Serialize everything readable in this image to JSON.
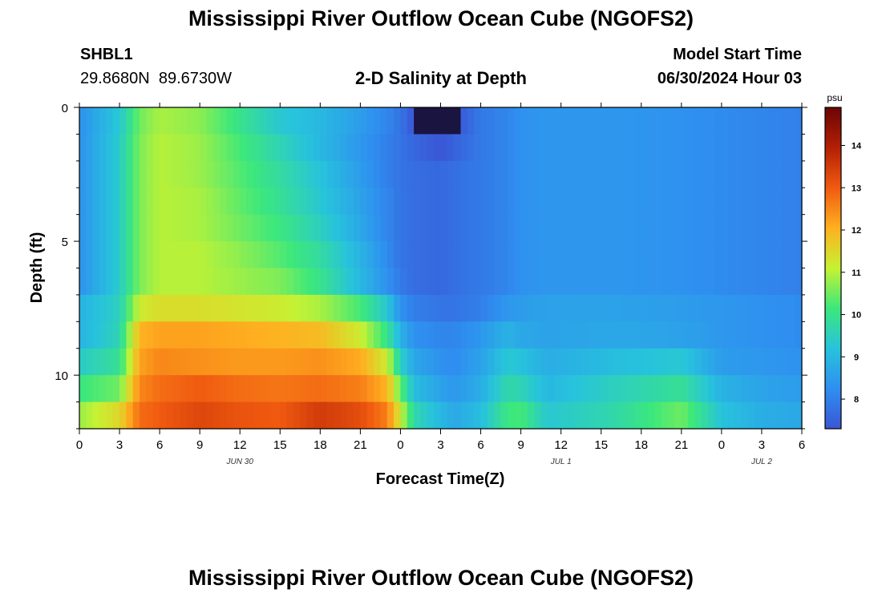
{
  "header": {
    "title": "Mississippi River Outflow Ocean Cube (NGOFS2)",
    "station_id": "SHBL1",
    "coordinates": "29.8680N  89.6730W",
    "subtitle": "2-D Salinity at Depth",
    "model_start_label": "Model Start Time",
    "model_start_value": "06/30/2024 Hour 03"
  },
  "footer": {
    "title": "Mississippi River Outflow Ocean Cube (NGOFS2)"
  },
  "colors": {
    "scale": [
      "#3a56d6",
      "#2f8ff0",
      "#27c3dc",
      "#3ce87c",
      "#c6f232",
      "#ffb020",
      "#f05a10",
      "#b31f05",
      "#6a0505"
    ],
    "scale_min_color": "#1a1440",
    "scale_max_color": "#5a0404"
  },
  "chart_data": {
    "type": "heatmap",
    "title": "2-D Salinity at Depth",
    "xlabel": "Forecast Time(Z)",
    "ylabel": "Depth (ft)",
    "xlim": [
      0,
      54
    ],
    "ylim": [
      0,
      12
    ],
    "y_inverted": true,
    "x_ticks": [
      0,
      3,
      6,
      9,
      12,
      15,
      18,
      21,
      24,
      27,
      30,
      33,
      36,
      39,
      42,
      45,
      48,
      51,
      54
    ],
    "x_tick_labels": [
      "0",
      "3",
      "6",
      "9",
      "12",
      "15",
      "18",
      "21",
      "0",
      "3",
      "6",
      "9",
      "12",
      "15",
      "18",
      "21",
      "0",
      "3",
      "6"
    ],
    "y_ticks": [
      0,
      5,
      10
    ],
    "y_tick_labels": [
      "0",
      "5",
      "10"
    ],
    "date_labels": [
      {
        "x": 12,
        "text": "JUN 30"
      },
      {
        "x": 36,
        "text": "JUL 1"
      },
      {
        "x": 51,
        "text": "JUL 2"
      }
    ],
    "colorbar": {
      "label": "psu",
      "min": 7.3,
      "max": 14.9,
      "ticks": [
        8,
        9,
        10,
        11,
        12,
        13,
        14
      ],
      "tick_labels": [
        "8",
        "9",
        "10",
        "11",
        "12",
        "13",
        "14"
      ]
    },
    "depths": [
      0,
      1,
      2,
      3,
      4,
      5,
      6,
      7,
      8,
      9,
      10,
      11
    ],
    "times": [
      0,
      3,
      4.5,
      6,
      9,
      12,
      15,
      18,
      21,
      23,
      24,
      25,
      27,
      28,
      30,
      32,
      33,
      35,
      40,
      45,
      48,
      51,
      54
    ],
    "values": [
      [
        8.3,
        9.3,
        10.5,
        10.9,
        10.7,
        10.0,
        9.3,
        9.0,
        8.5,
        8.1,
        7.8,
        7.3,
        6.8,
        7.2,
        7.9,
        8.1,
        8.3,
        8.4,
        8.4,
        8.3,
        8.2,
        8.1,
        8.0
      ],
      [
        8.3,
        9.4,
        10.6,
        11.0,
        10.8,
        10.2,
        9.6,
        9.0,
        8.4,
        8.0,
        7.8,
        7.6,
        7.3,
        7.5,
        7.9,
        8.1,
        8.3,
        8.4,
        8.4,
        8.3,
        8.2,
        8.1,
        8.0
      ],
      [
        8.3,
        9.4,
        10.6,
        11.0,
        10.8,
        10.3,
        9.8,
        9.2,
        8.5,
        8.0,
        7.8,
        7.7,
        7.6,
        7.7,
        7.9,
        8.1,
        8.3,
        8.4,
        8.4,
        8.3,
        8.2,
        8.1,
        8.0
      ],
      [
        8.3,
        9.4,
        10.6,
        11.0,
        10.9,
        10.4,
        9.9,
        9.3,
        8.6,
        8.1,
        7.8,
        7.7,
        7.6,
        7.7,
        7.9,
        8.1,
        8.3,
        8.4,
        8.4,
        8.3,
        8.2,
        8.1,
        8.0
      ],
      [
        8.3,
        9.4,
        10.6,
        11.0,
        10.9,
        10.5,
        10.1,
        9.5,
        8.7,
        8.1,
        7.8,
        7.7,
        7.6,
        7.7,
        7.9,
        8.1,
        8.3,
        8.4,
        8.4,
        8.3,
        8.2,
        8.1,
        8.0
      ],
      [
        8.3,
        9.4,
        10.6,
        11.0,
        11.0,
        10.7,
        10.3,
        9.8,
        8.9,
        8.2,
        7.8,
        7.7,
        7.6,
        7.7,
        7.9,
        8.1,
        8.3,
        8.4,
        8.4,
        8.3,
        8.2,
        8.1,
        8.0
      ],
      [
        8.3,
        9.4,
        10.6,
        11.0,
        11.0,
        10.8,
        10.6,
        10.0,
        9.0,
        8.3,
        7.9,
        7.7,
        7.6,
        7.7,
        7.9,
        8.1,
        8.3,
        8.4,
        8.4,
        8.3,
        8.2,
        8.1,
        8.0
      ],
      [
        8.9,
        9.5,
        11.2,
        11.4,
        11.4,
        11.3,
        11.2,
        10.9,
        10.2,
        9.3,
        8.3,
        8.0,
        7.8,
        7.8,
        8.0,
        8.4,
        8.5,
        8.6,
        8.6,
        8.5,
        8.4,
        8.3,
        8.2
      ],
      [
        8.9,
        9.6,
        12.0,
        12.2,
        12.2,
        12.1,
        12.0,
        11.9,
        11.2,
        10.0,
        8.9,
        8.3,
        8.1,
        8.1,
        8.4,
        8.9,
        8.7,
        8.6,
        8.7,
        8.6,
        8.4,
        8.3,
        8.2
      ],
      [
        9.4,
        9.9,
        12.2,
        12.5,
        12.4,
        12.3,
        12.3,
        12.4,
        12.1,
        11.2,
        9.5,
        8.7,
        8.3,
        8.2,
        8.6,
        9.3,
        9.2,
        8.8,
        9.1,
        9.3,
        8.5,
        8.4,
        8.3
      ],
      [
        10.1,
        10.5,
        12.5,
        12.8,
        13.0,
        12.8,
        12.7,
        12.8,
        12.6,
        12.0,
        10.4,
        9.1,
        8.6,
        8.4,
        8.8,
        9.7,
        9.6,
        9.0,
        9.5,
        9.9,
        8.9,
        8.6,
        8.5
      ],
      [
        10.8,
        11.5,
        12.8,
        13.0,
        13.3,
        13.1,
        13.0,
        13.5,
        13.2,
        12.6,
        11.2,
        9.7,
        9.0,
        8.7,
        9.1,
        10.1,
        10.2,
        9.3,
        9.7,
        10.5,
        9.2,
        8.8,
        8.7
      ]
    ]
  }
}
